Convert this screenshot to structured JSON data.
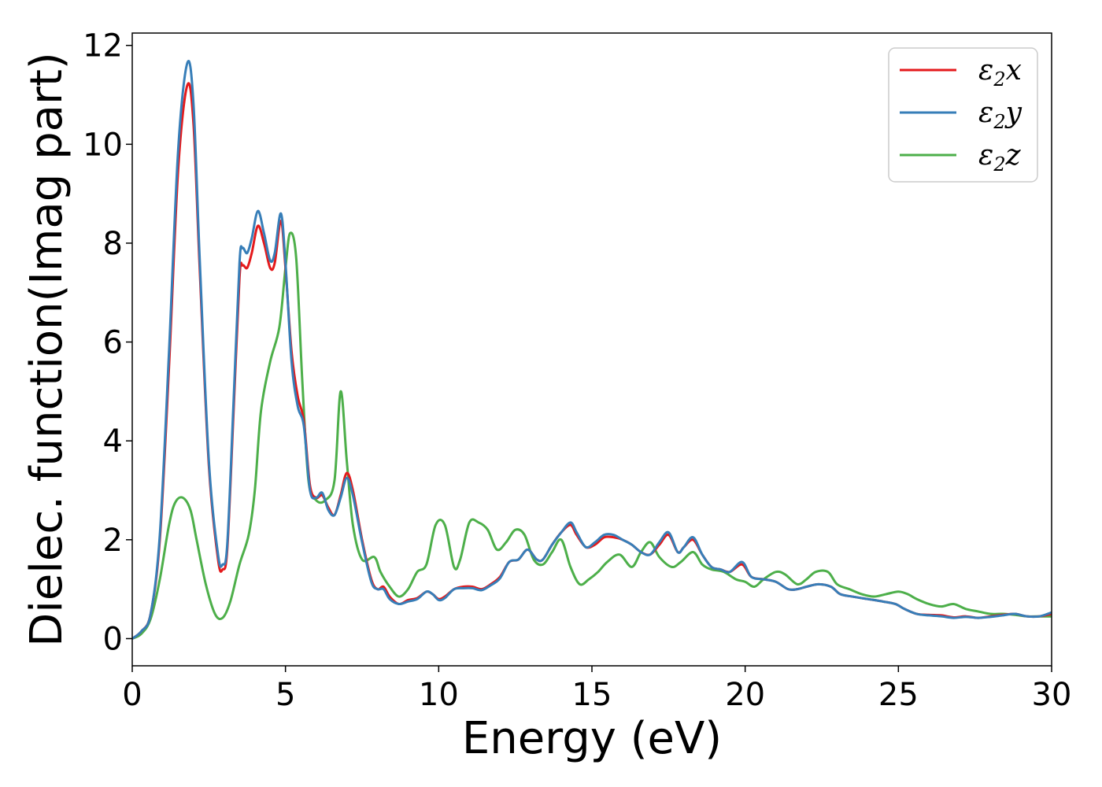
{
  "chart_data": {
    "type": "line",
    "title": "",
    "xlabel": "Energy (eV)",
    "ylabel": "Dielec. function(Imag part)",
    "xlim": [
      0,
      30
    ],
    "ylim": [
      -0.55,
      12.25
    ],
    "xticks": [
      0,
      5,
      10,
      15,
      20,
      25,
      30
    ],
    "xtick_labels": [
      "0",
      "5",
      "10",
      "15",
      "20",
      "25",
      "30"
    ],
    "yticks": [
      0,
      2,
      4,
      6,
      8,
      10,
      12
    ],
    "ytick_labels": [
      "0",
      "2",
      "4",
      "6",
      "8",
      "10",
      "12"
    ],
    "grid": false,
    "legend_position": "top-right",
    "series": [
      {
        "legend_base": "ε",
        "legend_sub": "2",
        "legend_suffix": "x",
        "color": "#e41a1c",
        "x": [
          0,
          0.3,
          0.6,
          0.9,
          1.2,
          1.5,
          1.8,
          2.0,
          2.2,
          2.5,
          2.8,
          2.95,
          3.1,
          3.3,
          3.5,
          3.6,
          3.75,
          3.9,
          4.1,
          4.3,
          4.5,
          4.65,
          4.85,
          5.0,
          5.2,
          5.4,
          5.6,
          5.8,
          6.0,
          6.2,
          6.4,
          6.6,
          6.8,
          7.0,
          7.2,
          7.5,
          7.8,
          8.0,
          8.2,
          8.4,
          8.7,
          9.0,
          9.3,
          9.6,
          9.8,
          10.0,
          10.2,
          10.5,
          10.8,
          11.1,
          11.4,
          11.7,
          12.0,
          12.3,
          12.6,
          12.9,
          13.2,
          13.4,
          13.7,
          14.0,
          14.3,
          14.5,
          14.8,
          15.1,
          15.4,
          15.7,
          16.0,
          16.3,
          16.6,
          16.9,
          17.2,
          17.5,
          17.8,
          18.0,
          18.3,
          18.6,
          18.9,
          19.2,
          19.5,
          19.9,
          20.2,
          20.6,
          21.0,
          21.4,
          21.7,
          22.0,
          22.4,
          22.8,
          23.1,
          23.5,
          24.0,
          24.5,
          24.9,
          25.2,
          25.6,
          26.0,
          26.4,
          26.8,
          27.2,
          27.6,
          28.0,
          28.4,
          28.8,
          29.2,
          29.6,
          30.0
        ],
        "y": [
          0,
          0.15,
          0.5,
          2.0,
          5.5,
          9.5,
          11.2,
          10.4,
          7.5,
          3.5,
          1.6,
          1.4,
          1.8,
          4.5,
          7.3,
          7.55,
          7.5,
          7.8,
          8.35,
          8.0,
          7.5,
          7.6,
          8.45,
          7.5,
          5.8,
          4.9,
          4.4,
          3.1,
          2.85,
          2.9,
          2.65,
          2.5,
          2.9,
          3.35,
          3.0,
          2.0,
          1.2,
          1.0,
          1.05,
          0.85,
          0.7,
          0.78,
          0.82,
          0.95,
          0.9,
          0.8,
          0.85,
          1.0,
          1.05,
          1.05,
          1.0,
          1.1,
          1.25,
          1.55,
          1.6,
          1.8,
          1.6,
          1.6,
          1.9,
          2.15,
          2.3,
          2.1,
          1.85,
          1.9,
          2.05,
          2.05,
          2.0,
          1.9,
          1.75,
          1.7,
          1.9,
          2.1,
          1.75,
          1.85,
          2.0,
          1.7,
          1.45,
          1.4,
          1.35,
          1.5,
          1.25,
          1.2,
          1.15,
          1.0,
          1.0,
          1.05,
          1.1,
          1.05,
          0.9,
          0.85,
          0.8,
          0.75,
          0.7,
          0.6,
          0.5,
          0.48,
          0.47,
          0.43,
          0.45,
          0.42,
          0.45,
          0.48,
          0.5,
          0.45,
          0.45,
          0.5
        ]
      },
      {
        "legend_base": "ε",
        "legend_sub": "2",
        "legend_suffix": "y",
        "color": "#377eb8",
        "x": [
          0,
          0.3,
          0.6,
          0.9,
          1.2,
          1.5,
          1.8,
          2.0,
          2.2,
          2.5,
          2.8,
          2.95,
          3.1,
          3.3,
          3.5,
          3.6,
          3.75,
          3.9,
          4.1,
          4.3,
          4.5,
          4.65,
          4.85,
          5.0,
          5.2,
          5.4,
          5.6,
          5.8,
          6.0,
          6.2,
          6.4,
          6.6,
          6.8,
          7.0,
          7.2,
          7.5,
          7.8,
          8.0,
          8.2,
          8.4,
          8.7,
          9.0,
          9.3,
          9.6,
          9.8,
          10.0,
          10.2,
          10.5,
          10.8,
          11.1,
          11.4,
          11.7,
          12.0,
          12.3,
          12.6,
          12.9,
          13.2,
          13.4,
          13.7,
          14.0,
          14.3,
          14.5,
          14.8,
          15.1,
          15.4,
          15.7,
          16.0,
          16.3,
          16.6,
          16.9,
          17.2,
          17.5,
          17.8,
          18.0,
          18.3,
          18.6,
          18.9,
          19.2,
          19.5,
          19.9,
          20.2,
          20.6,
          21.0,
          21.4,
          21.7,
          22.0,
          22.4,
          22.8,
          23.1,
          23.5,
          24.0,
          24.5,
          24.9,
          25.2,
          25.6,
          26.0,
          26.4,
          26.8,
          27.2,
          27.6,
          28.0,
          28.4,
          28.8,
          29.2,
          29.6,
          30.0
        ],
        "y": [
          0,
          0.15,
          0.5,
          2.1,
          5.8,
          9.9,
          11.65,
          10.8,
          7.7,
          3.6,
          1.7,
          1.5,
          1.9,
          4.7,
          7.6,
          7.9,
          7.8,
          8.1,
          8.65,
          8.2,
          7.65,
          7.8,
          8.6,
          7.6,
          5.6,
          4.7,
          4.3,
          3.0,
          2.85,
          2.95,
          2.6,
          2.5,
          2.85,
          3.25,
          2.9,
          1.95,
          1.15,
          1.0,
          1.0,
          0.8,
          0.7,
          0.75,
          0.8,
          0.95,
          0.9,
          0.78,
          0.82,
          1.0,
          1.02,
          1.02,
          0.98,
          1.08,
          1.22,
          1.55,
          1.6,
          1.8,
          1.6,
          1.6,
          1.9,
          2.15,
          2.35,
          2.15,
          1.85,
          1.95,
          2.1,
          2.1,
          2.0,
          1.9,
          1.75,
          1.7,
          1.95,
          2.15,
          1.75,
          1.85,
          2.05,
          1.7,
          1.45,
          1.4,
          1.35,
          1.55,
          1.25,
          1.2,
          1.15,
          1.0,
          1.0,
          1.05,
          1.1,
          1.05,
          0.9,
          0.85,
          0.8,
          0.75,
          0.7,
          0.6,
          0.5,
          0.47,
          0.45,
          0.42,
          0.44,
          0.42,
          0.44,
          0.47,
          0.5,
          0.45,
          0.45,
          0.53
        ]
      },
      {
        "legend_base": "ε",
        "legend_sub": "2",
        "legend_suffix": "z",
        "color": "#4daf4a",
        "x": [
          0,
          0.3,
          0.6,
          0.9,
          1.2,
          1.4,
          1.65,
          1.9,
          2.1,
          2.4,
          2.7,
          2.95,
          3.2,
          3.5,
          3.8,
          4.0,
          4.2,
          4.5,
          4.8,
          5.0,
          5.15,
          5.35,
          5.55,
          5.75,
          6.0,
          6.3,
          6.6,
          6.8,
          7.0,
          7.2,
          7.5,
          7.9,
          8.1,
          8.4,
          8.7,
          9.0,
          9.3,
          9.6,
          9.9,
          10.2,
          10.5,
          10.7,
          11.0,
          11.3,
          11.6,
          11.9,
          12.2,
          12.5,
          12.8,
          13.1,
          13.4,
          13.7,
          14.0,
          14.3,
          14.6,
          14.9,
          15.2,
          15.5,
          15.9,
          16.3,
          16.6,
          16.9,
          17.2,
          17.6,
          17.9,
          18.3,
          18.6,
          18.9,
          19.3,
          19.7,
          20.0,
          20.3,
          20.6,
          21.0,
          21.3,
          21.7,
          22.0,
          22.3,
          22.7,
          23.0,
          23.4,
          23.8,
          24.2,
          24.6,
          25.0,
          25.3,
          25.6,
          26.0,
          26.4,
          26.8,
          27.2,
          27.6,
          28.0,
          28.4,
          28.8,
          29.2,
          29.6,
          30.0
        ],
        "y": [
          0,
          0.1,
          0.4,
          1.2,
          2.3,
          2.75,
          2.85,
          2.6,
          2.0,
          1.1,
          0.5,
          0.42,
          0.75,
          1.5,
          2.1,
          3.0,
          4.6,
          5.6,
          6.3,
          7.5,
          8.2,
          7.7,
          5.2,
          3.2,
          2.8,
          2.8,
          3.2,
          5.0,
          3.6,
          2.3,
          1.6,
          1.65,
          1.35,
          1.05,
          0.85,
          1.0,
          1.35,
          1.5,
          2.3,
          2.3,
          1.45,
          1.6,
          2.35,
          2.35,
          2.2,
          1.8,
          1.95,
          2.2,
          2.1,
          1.6,
          1.5,
          1.75,
          2.0,
          1.45,
          1.1,
          1.2,
          1.35,
          1.55,
          1.7,
          1.45,
          1.75,
          1.95,
          1.65,
          1.45,
          1.55,
          1.75,
          1.5,
          1.4,
          1.35,
          1.2,
          1.15,
          1.05,
          1.2,
          1.35,
          1.3,
          1.1,
          1.2,
          1.35,
          1.35,
          1.1,
          1.0,
          0.9,
          0.85,
          0.9,
          0.95,
          0.9,
          0.8,
          0.7,
          0.65,
          0.7,
          0.6,
          0.55,
          0.5,
          0.5,
          0.48,
          0.45,
          0.45,
          0.45
        ]
      }
    ]
  }
}
